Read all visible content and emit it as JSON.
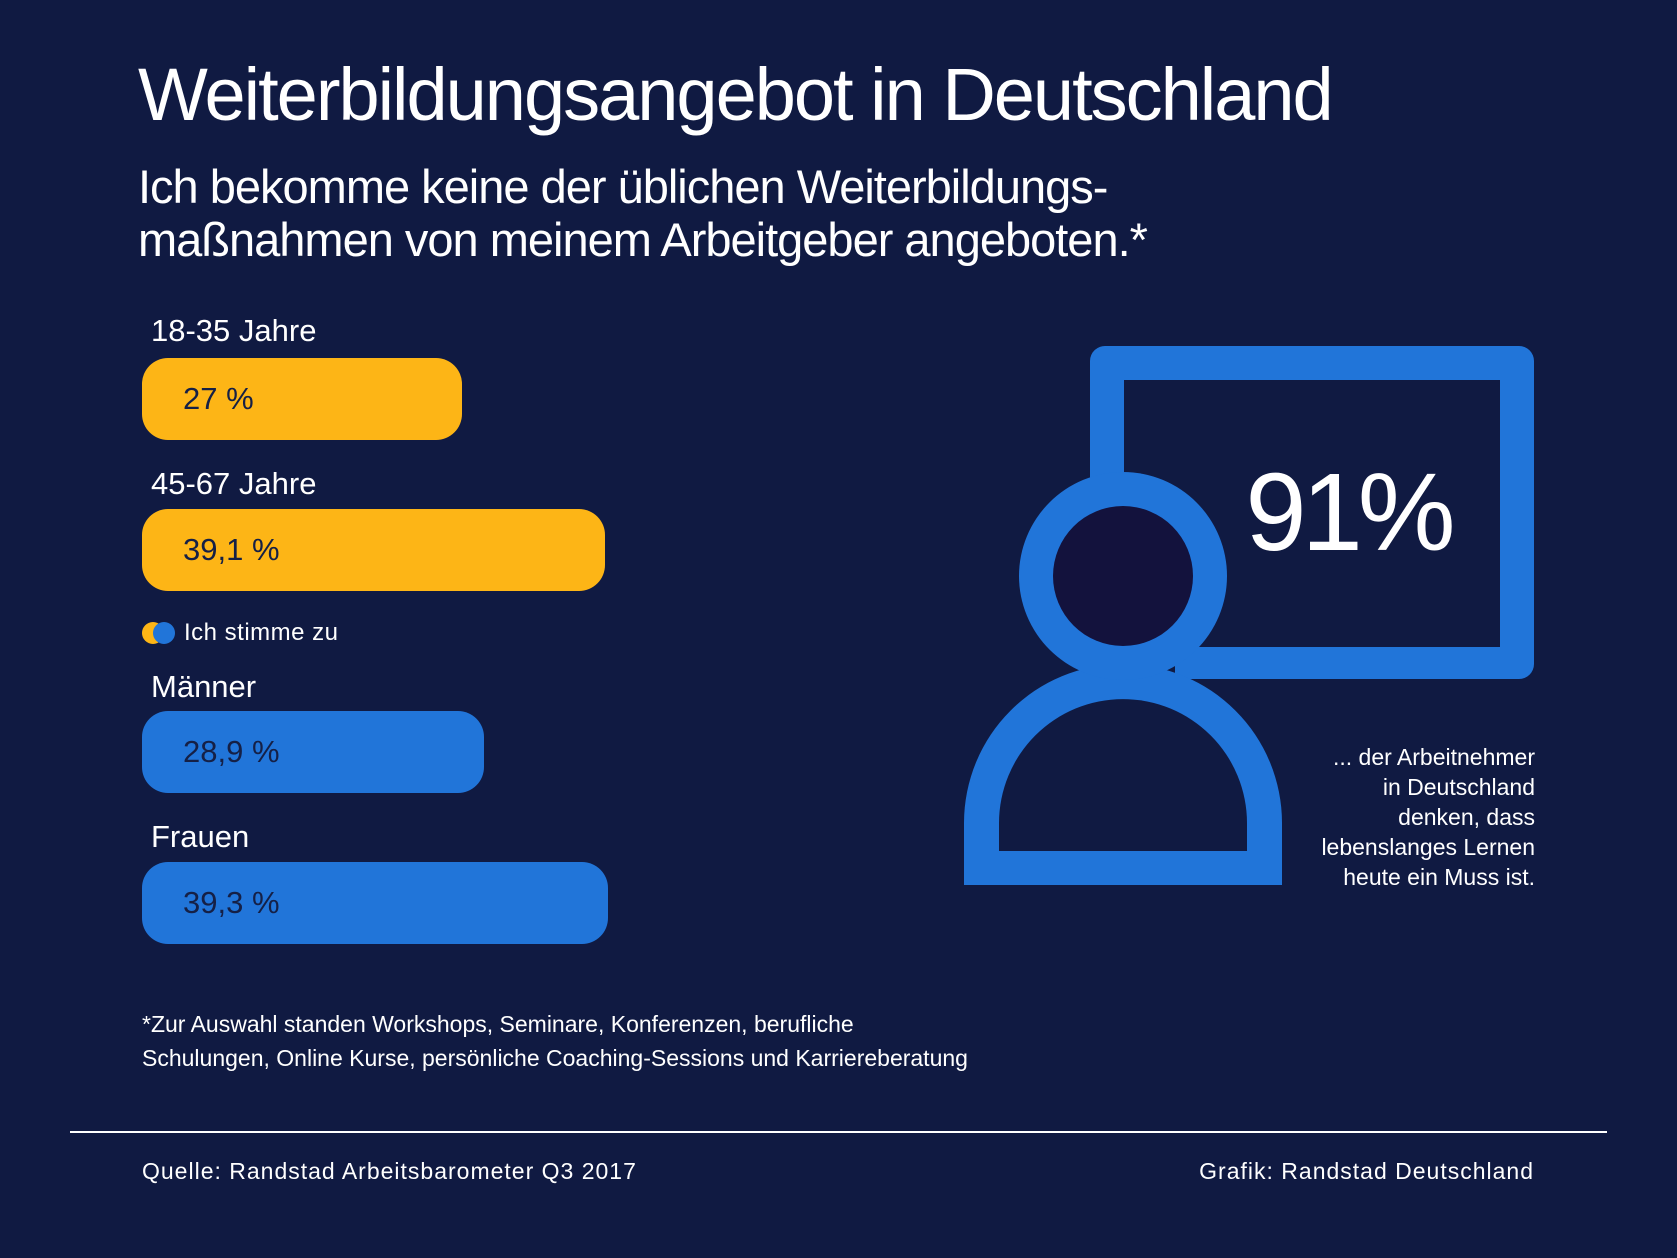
{
  "title": "Weiterbildungsangebot in Deutschland",
  "subtitle": {
    "line1": "Ich bekomme keine der üblichen Weiterbildungs-",
    "line2": "maßnahmen von meinem Arbeitgeber angeboten.*"
  },
  "colors": {
    "background": "#101a42",
    "age_groups": "#fdb516",
    "gender": "#2175d9",
    "text": "#ffffff"
  },
  "chart_data": {
    "type": "bar",
    "orientation": "horizontal",
    "unit": "%",
    "legend": [
      "Ich stimme zu"
    ],
    "categories": [
      "18-35 Jahre",
      "45-67 Jahre",
      "Männer",
      "Frauen"
    ],
    "values": [
      27,
      39.1,
      28.9,
      39.3
    ],
    "value_labels": [
      "27 %",
      "39,1 %",
      "28,9 %",
      "39,3 %"
    ],
    "groups": [
      {
        "categories": [
          "18-35 Jahre",
          "45-67 Jahre"
        ],
        "color": "#fdb516"
      },
      {
        "categories": [
          "Männer",
          "Frauen"
        ],
        "color": "#2175d9"
      }
    ]
  },
  "highlight": {
    "value": 91,
    "value_label": "91%",
    "icon": "person-at-board-icon",
    "note_lines": [
      "... der Arbeitnehmer",
      "in Deutschland",
      "denken, dass",
      "lebenslanges Lernen",
      "heute ein Muss ist."
    ]
  },
  "footnote": {
    "line1": "*Zur Auswahl standen Workshops, Seminare, Konferenzen, berufliche",
    "line2": "Schulungen, Online Kurse, persönliche Coaching-Sessions und Karriereberatung"
  },
  "source": "Quelle: Randstad Arbeitsbarometer Q3 2017",
  "credit": "Grafik: Randstad Deutschland"
}
